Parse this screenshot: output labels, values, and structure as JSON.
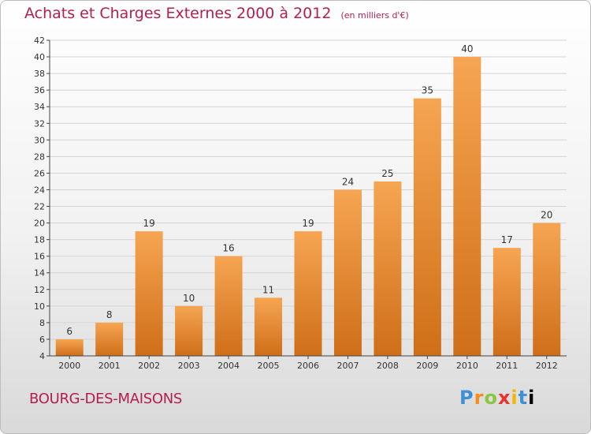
{
  "header": {
    "title": "Achats et Charges Externes 2000 à 2012",
    "unit": "(en milliers d'€)"
  },
  "footer": {
    "commune": "BOURG-DES-MAISONS",
    "brand_letters": [
      "P",
      "r",
      "o",
      "x",
      "i",
      "t",
      "i"
    ]
  },
  "colors": {
    "title": "#b41e4e",
    "bar_top": "#f6a552",
    "bar_bottom": "#cf6e18",
    "grid": "#d4d4d4"
  },
  "chart_data": {
    "type": "bar",
    "title": "Achats et Charges Externes 2000 à 2012",
    "subtitle": "(en milliers d'€)",
    "categories": [
      "2000",
      "2001",
      "2002",
      "2003",
      "2004",
      "2005",
      "2006",
      "2007",
      "2008",
      "2009",
      "2010",
      "2011",
      "2012"
    ],
    "values": [
      6,
      8,
      19,
      10,
      16,
      11,
      19,
      24,
      25,
      35,
      40,
      17,
      20
    ],
    "ylim": [
      4,
      42
    ],
    "yticks": [
      4,
      6,
      8,
      10,
      12,
      14,
      16,
      18,
      20,
      22,
      24,
      26,
      28,
      30,
      32,
      34,
      36,
      38,
      40,
      42
    ],
    "grid": true,
    "legend": "none"
  }
}
